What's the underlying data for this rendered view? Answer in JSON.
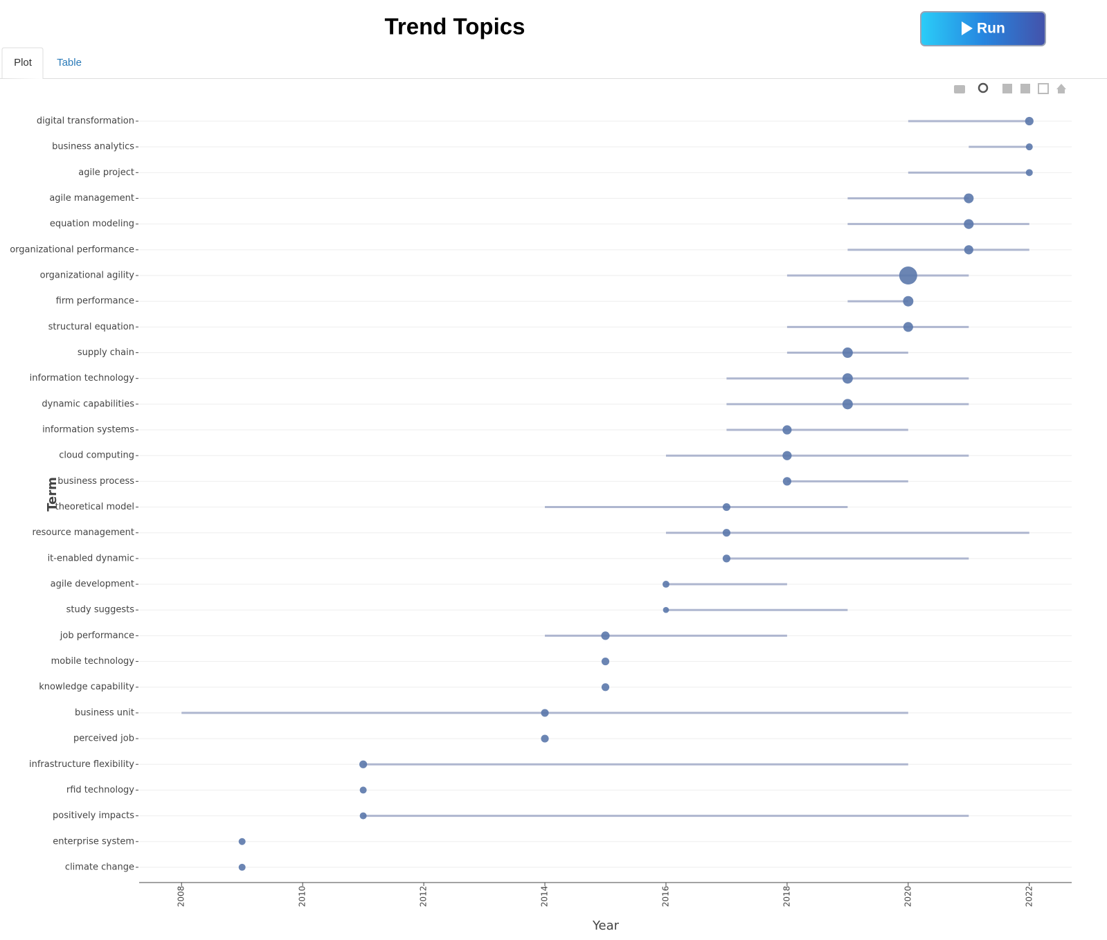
{
  "header": {
    "title": "Trend Topics",
    "run_label": "Run"
  },
  "tabs": [
    "Plot",
    "Table"
  ],
  "chart_data": {
    "type": "range-dot",
    "x_label": "Year",
    "y_label": "Term",
    "categories": [
      "digital transformation",
      "business analytics",
      "agile project",
      "agile management",
      "equation modeling",
      "organizational performance",
      "organizational agility",
      "firm performance",
      "structural equation",
      "supply chain",
      "information technology",
      "dynamic capabilities",
      "information systems",
      "cloud computing",
      "business process",
      "theoretical model",
      "resource management",
      "it-enabled dynamic",
      "agile development",
      "study suggests",
      "job performance",
      "mobile technology",
      "knowledge capability",
      "business unit",
      "perceived job",
      "infrastructure flexibility",
      "rfid technology",
      "positively impacts",
      "enterprise system",
      "climate change"
    ],
    "values": [
      2022,
      2022,
      2022,
      2021,
      2021,
      2021,
      2020,
      2020,
      2020,
      2019,
      2019,
      2019,
      2018,
      2018,
      2018,
      2017,
      2017,
      2017,
      2016,
      2016,
      2015,
      2015,
      2015,
      2014,
      2014,
      2011,
      2011,
      2011,
      2009,
      2009
    ],
    "q1": [
      2020,
      2021,
      2020,
      2019,
      2019,
      2019,
      2018,
      2019,
      2018,
      2018,
      2017,
      2017,
      2017,
      2016,
      2018,
      2014,
      2016,
      2017,
      2016,
      2016,
      2014,
      2015,
      2015,
      2008,
      2014,
      2011,
      2011,
      2011,
      2009,
      2009
    ],
    "q3": [
      2022,
      2022,
      2022,
      2021,
      2022,
      2022,
      2021,
      2020,
      2021,
      2020,
      2021,
      2021,
      2020,
      2021,
      2020,
      2019,
      2022,
      2021,
      2018,
      2019,
      2018,
      2015,
      2015,
      2020,
      2014,
      2020,
      2011,
      2021,
      2009,
      2009
    ],
    "sizes": [
      6,
      4,
      4,
      8,
      8,
      7,
      27,
      9,
      8,
      9,
      9,
      9,
      7,
      7,
      6,
      5,
      5,
      5,
      4,
      3,
      6,
      5,
      5,
      5,
      5,
      5,
      4,
      4,
      4,
      4
    ],
    "dot_color": "#5b78ab",
    "range_color": "#aeb6cf",
    "grid": true,
    "xlim": [
      2007.3,
      2022.7
    ],
    "xticks": [
      2008,
      2010,
      2012,
      2014,
      2016,
      2018,
      2020,
      2022
    ]
  }
}
